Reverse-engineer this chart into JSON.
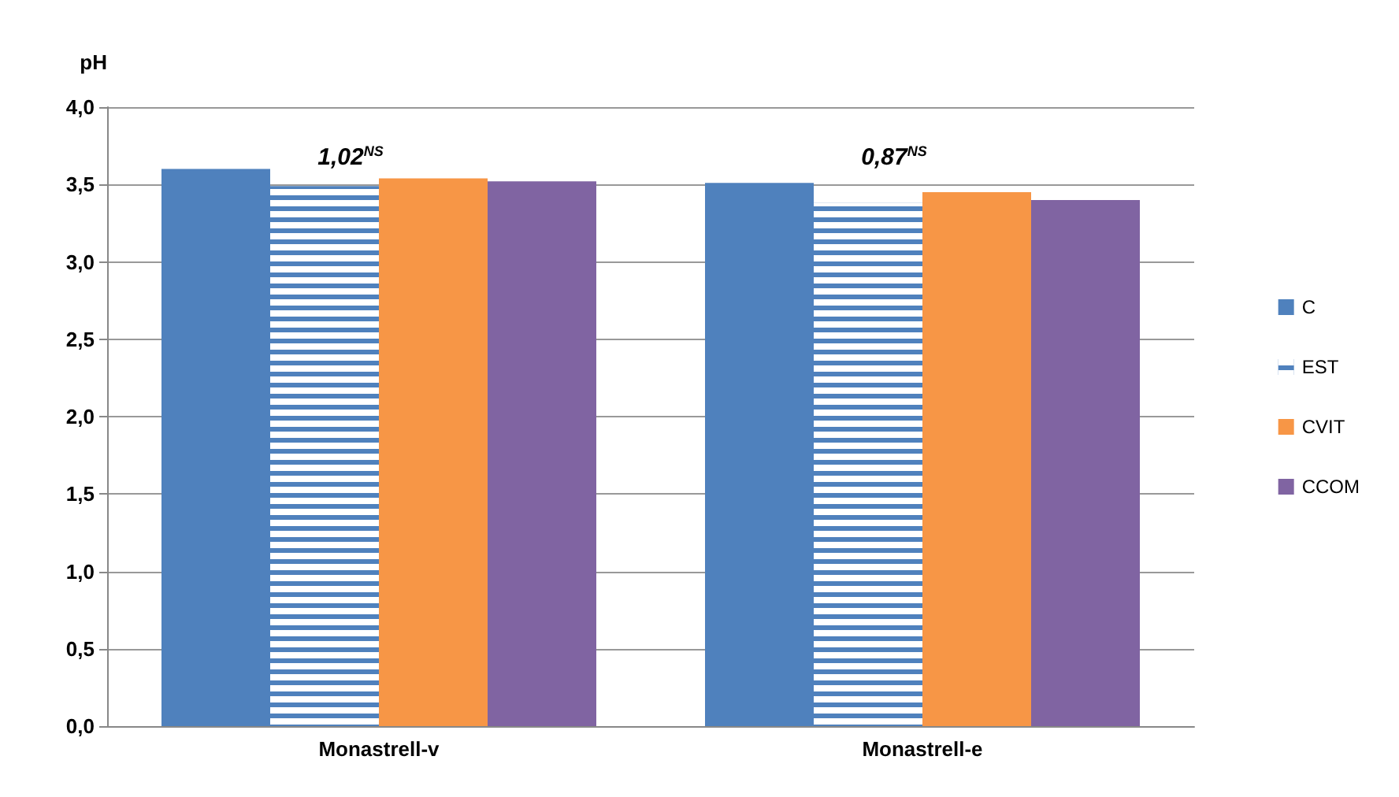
{
  "chart_data": {
    "type": "bar",
    "ylabel": "pH",
    "categories": [
      "Monastrell-v",
      "Monastrell-e"
    ],
    "series": [
      {
        "name": "C",
        "color": "#4f81bd",
        "values": [
          3.6,
          3.51
        ]
      },
      {
        "name": "EST",
        "color": "#4f81bd",
        "values": [
          3.49,
          3.38
        ]
      },
      {
        "name": "CVIT",
        "color": "#f79646",
        "values": [
          3.54,
          3.45
        ]
      },
      {
        "name": "CCOM",
        "color": "#8064a2",
        "values": [
          3.52,
          3.4
        ]
      }
    ],
    "ylim": [
      0,
      4
    ],
    "yticks": [
      {
        "value": 0,
        "label": "0,0"
      },
      {
        "value": 0.5,
        "label": "0,5"
      },
      {
        "value": 1,
        "label": "1,0"
      },
      {
        "value": 1.5,
        "label": "1,5"
      },
      {
        "value": 2,
        "label": "2,0"
      },
      {
        "value": 2.5,
        "label": "2,5"
      },
      {
        "value": 3,
        "label": "3,0"
      },
      {
        "value": 3.5,
        "label": "3,5"
      },
      {
        "value": 4,
        "label": "4,0"
      }
    ],
    "annotations": [
      "1,02$^{NS}$",
      "0,87$^{NS}$"
    ],
    "grid": "y",
    "legend": "right"
  }
}
